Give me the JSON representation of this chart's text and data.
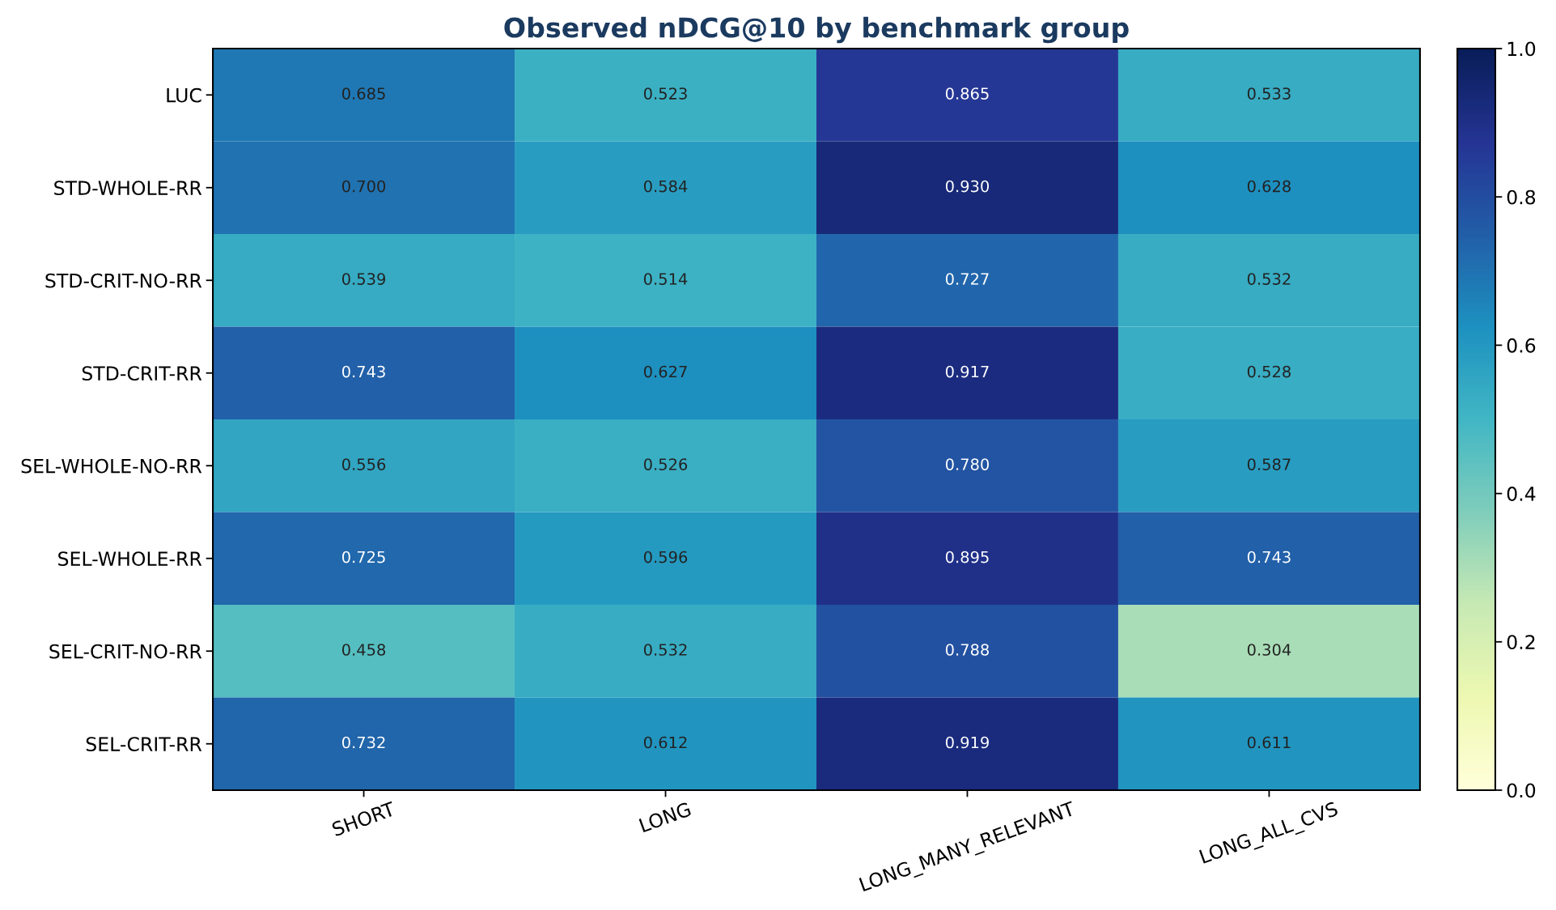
{
  "chart_data": {
    "type": "heatmap",
    "title": "Observed nDCG@10 by benchmark group",
    "categories": [
      "SHORT",
      "LONG",
      "LONG_MANY_RELEVANT",
      "LONG_ALL_CVS"
    ],
    "y_categories": [
      "LUC",
      "STD-WHOLE-RR",
      "STD-CRIT-NO-RR",
      "STD-CRIT-RR",
      "SEL-WHOLE-NO-RR",
      "SEL-WHOLE-RR",
      "SEL-CRIT-NO-RR",
      "SEL-CRIT-RR"
    ],
    "cells": [
      [
        0.685,
        0.523,
        0.865,
        0.533
      ],
      [
        0.7,
        0.584,
        0.93,
        0.628
      ],
      [
        0.539,
        0.514,
        0.727,
        0.532
      ],
      [
        0.743,
        0.627,
        0.917,
        0.528
      ],
      [
        0.556,
        0.526,
        0.78,
        0.587
      ],
      [
        0.725,
        0.596,
        0.895,
        0.743
      ],
      [
        0.458,
        0.532,
        0.788,
        0.304
      ],
      [
        0.732,
        0.612,
        0.919,
        0.611
      ]
    ],
    "cell_labels": [
      [
        "0.685",
        "0.523",
        "0.865",
        "0.533"
      ],
      [
        "0.700",
        "0.584",
        "0.930",
        "0.628"
      ],
      [
        "0.539",
        "0.514",
        "0.727",
        "0.532"
      ],
      [
        "0.743",
        "0.627",
        "0.917",
        "0.528"
      ],
      [
        "0.556",
        "0.526",
        "0.780",
        "0.587"
      ],
      [
        "0.725",
        "0.596",
        "0.895",
        "0.743"
      ],
      [
        "0.458",
        "0.532",
        "0.788",
        "0.304"
      ],
      [
        "0.732",
        "0.612",
        "0.919",
        "0.611"
      ]
    ],
    "clim": [
      0,
      1
    ],
    "cticks": [
      {
        "value": 0,
        "label": "0.0"
      },
      {
        "value": 0.2,
        "label": "0.2"
      },
      {
        "value": 0.4,
        "label": "0.4"
      },
      {
        "value": 0.6,
        "label": "0.6"
      },
      {
        "value": 0.8,
        "label": "0.8"
      },
      {
        "value": 1,
        "label": "1.0"
      }
    ]
  }
}
